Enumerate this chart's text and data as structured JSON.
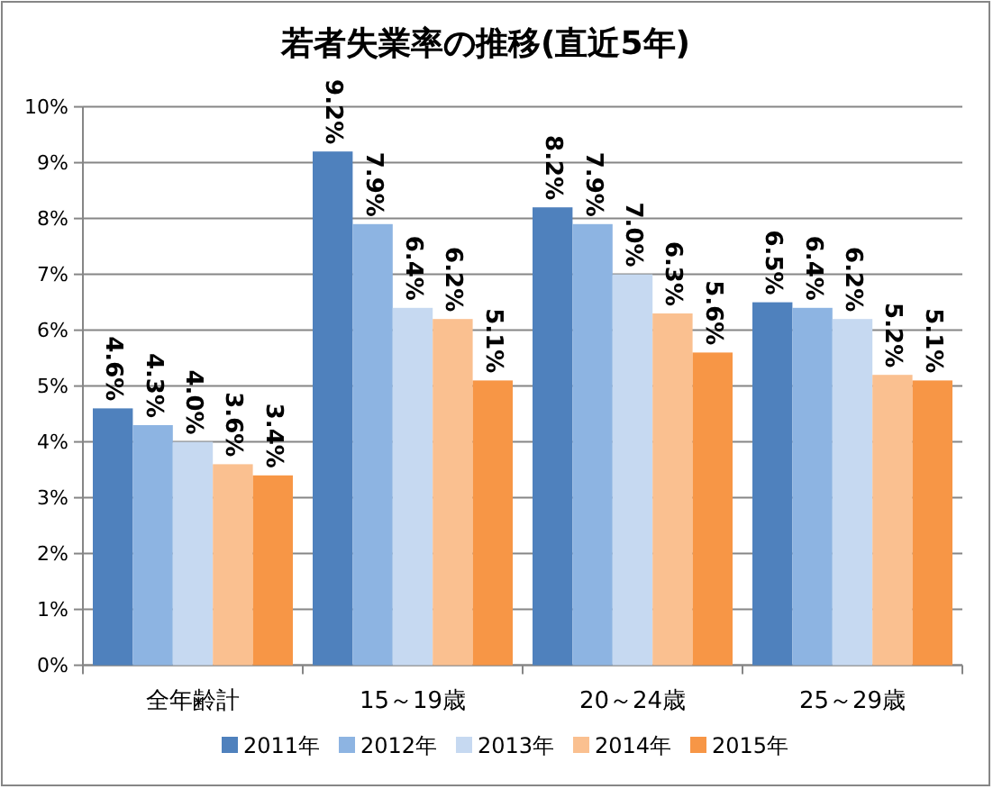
{
  "chart_data": {
    "type": "bar",
    "title": "若者失業率の推移(直近5年)",
    "categories": [
      "全年齢計",
      "15～19歳",
      "20～24歳",
      "25～29歳"
    ],
    "series": [
      {
        "name": "2011年",
        "color": "#4f81bd",
        "values": [
          4.6,
          9.2,
          8.2,
          6.5
        ],
        "value_labels": [
          "4.6%",
          "9.2%",
          "8.2%",
          "6.5%"
        ]
      },
      {
        "name": "2012年",
        "color": "#8db4e2",
        "values": [
          4.3,
          7.9,
          7.9,
          6.4
        ],
        "value_labels": [
          "4.3%",
          "7.9%",
          "7.9%",
          "6.4%"
        ]
      },
      {
        "name": "2013年",
        "color": "#c6d9f1",
        "values": [
          4.0,
          6.4,
          7.0,
          6.2
        ],
        "value_labels": [
          "4.0%",
          "6.4%",
          "7.0%",
          "6.2%"
        ]
      },
      {
        "name": "2014年",
        "color": "#fac090",
        "values": [
          3.6,
          6.2,
          6.3,
          5.2
        ],
        "value_labels": [
          "3.6%",
          "6.2%",
          "6.3%",
          "5.2%"
        ]
      },
      {
        "name": "2015年",
        "color": "#f79646",
        "values": [
          3.4,
          5.1,
          5.6,
          5.1
        ],
        "value_labels": [
          "3.4%",
          "5.1%",
          "5.6%",
          "5.1%"
        ]
      }
    ],
    "ylim": [
      0,
      10
    ],
    "yticks": [
      {
        "value": 0,
        "label": "0%"
      },
      {
        "value": 1,
        "label": "1%"
      },
      {
        "value": 2,
        "label": "2%"
      },
      {
        "value": 3,
        "label": "3%"
      },
      {
        "value": 4,
        "label": "4%"
      },
      {
        "value": 5,
        "label": "5%"
      },
      {
        "value": 6,
        "label": "6%"
      },
      {
        "value": 7,
        "label": "7%"
      },
      {
        "value": 8,
        "label": "8%"
      },
      {
        "value": 9,
        "label": "9%"
      },
      {
        "value": 10,
        "label": "10%"
      }
    ],
    "grid": "y",
    "legend": "bottom"
  }
}
